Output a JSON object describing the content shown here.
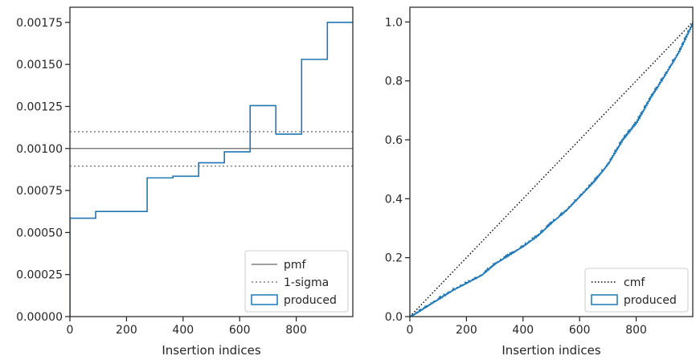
{
  "chart_data": [
    {
      "type": "line",
      "chart_subtype": "step-histogram",
      "xlabel": "Insertion indices",
      "ylabel": "",
      "xlim": [
        0,
        1000
      ],
      "ylim": [
        0,
        0.00184
      ],
      "xticks": [
        0,
        200,
        400,
        600,
        800
      ],
      "xtick_labels": [
        "0",
        "200",
        "400",
        "600",
        "800"
      ],
      "yticks": [
        0,
        0.00025,
        0.0005,
        0.00075,
        0.001,
        0.00125,
        0.0015,
        0.00175
      ],
      "ytick_labels": [
        "0.00000",
        "0.00025",
        "0.00050",
        "0.00075",
        "0.00100",
        "0.00125",
        "0.00150",
        "0.00175"
      ],
      "grid": false,
      "legend_position": "lower-right",
      "series": [
        {
          "name": "pmf",
          "kind": "hline",
          "value": 0.001,
          "color": "#808080",
          "linestyle": "solid"
        },
        {
          "name": "1-sigma",
          "kind": "hlines",
          "values": [
            0.000895,
            0.0011
          ],
          "color": "#808080",
          "linestyle": "dotted"
        },
        {
          "name": "produced",
          "kind": "step",
          "color": "#1f77b4",
          "bin_edges": [
            0,
            91,
            273,
            364,
            455,
            546,
            637,
            728,
            819,
            910,
            1000
          ],
          "values": [
            0.000585,
            0.000625,
            0.000825,
            0.000835,
            0.000915,
            0.00098,
            0.001255,
            0.001085,
            0.00153,
            0.00175
          ]
        }
      ]
    },
    {
      "type": "line",
      "xlabel": "Insertion indices",
      "ylabel": "",
      "xlim": [
        0,
        1000
      ],
      "ylim": [
        0,
        1.05
      ],
      "xticks": [
        0,
        200,
        400,
        600,
        800
      ],
      "xtick_labels": [
        "0",
        "200",
        "400",
        "600",
        "800"
      ],
      "yticks": [
        0,
        0.2,
        0.4,
        0.6,
        0.8,
        1.0
      ],
      "ytick_labels": [
        "0.0",
        "0.2",
        "0.4",
        "0.6",
        "0.8",
        "1.0"
      ],
      "grid": false,
      "legend_position": "lower-right",
      "series": [
        {
          "name": "cmf",
          "kind": "line",
          "color": "#000000",
          "linestyle": "dotted",
          "x": [
            0,
            1000
          ],
          "y": [
            0,
            1.0
          ]
        },
        {
          "name": "produced",
          "kind": "step-cumulative",
          "color": "#1f77b4",
          "x": [
            0,
            50,
            100,
            150,
            200,
            250,
            300,
            350,
            400,
            450,
            500,
            550,
            600,
            650,
            700,
            750,
            800,
            850,
            900,
            950,
            1000
          ],
          "y": [
            0,
            0.03,
            0.06,
            0.09,
            0.115,
            0.14,
            0.18,
            0.21,
            0.24,
            0.275,
            0.32,
            0.36,
            0.41,
            0.46,
            0.52,
            0.6,
            0.66,
            0.745,
            0.82,
            0.9,
            1.0
          ]
        }
      ]
    }
  ]
}
